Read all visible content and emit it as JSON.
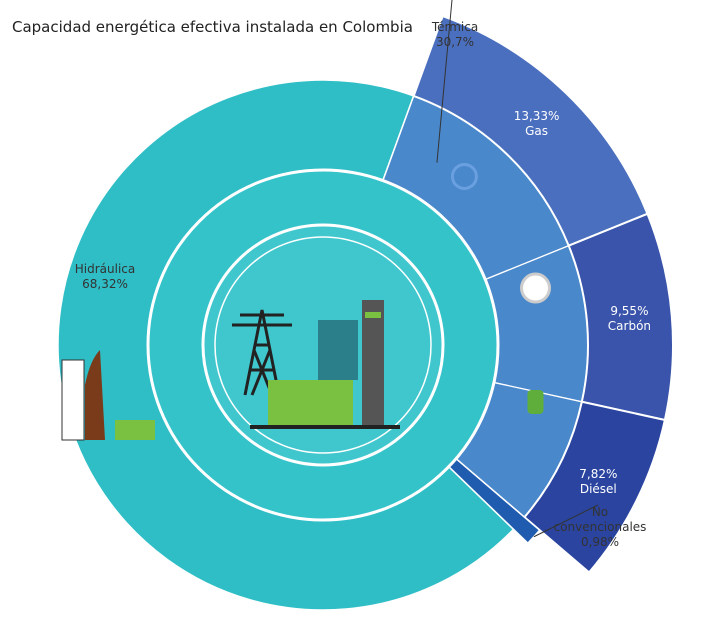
{
  "chart_data": {
    "type": "sunburst",
    "title": "Capacidad energética efectiva instalada en Colombia",
    "series": [
      {
        "name": "Hidráulica",
        "value": 68.32,
        "value_label": "68,32%",
        "color": "#2fbec6"
      },
      {
        "name": "Térmica",
        "value": 30.7,
        "value_label": "30,7%",
        "color": "#4a88cc",
        "children": [
          {
            "name": "Gas",
            "value": 13.33,
            "value_label": "13,33%",
            "color": "#4b6fbf"
          },
          {
            "name": "Carbón",
            "value": 9.55,
            "value_label": "9,55%",
            "color": "#3954aa"
          },
          {
            "name": "Diésel",
            "value": 7.82,
            "value_label": "7,82%",
            "color": "#2a44a0"
          }
        ]
      },
      {
        "name": "No convencionales",
        "value": 0.98,
        "value_label": "0,98%",
        "color": "#1f5cb0"
      }
    ]
  }
}
